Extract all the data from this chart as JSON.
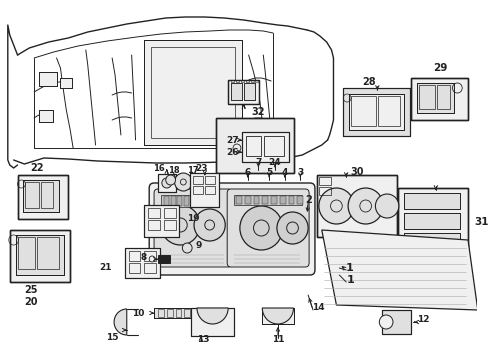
{
  "bg_color": "#ffffff",
  "line_color": "#222222",
  "fig_width": 4.89,
  "fig_height": 3.6,
  "dpi": 100,
  "gray_fill": "#d8d8d8",
  "light_fill": "#f0f0f0",
  "mid_fill": "#e0e0e0"
}
